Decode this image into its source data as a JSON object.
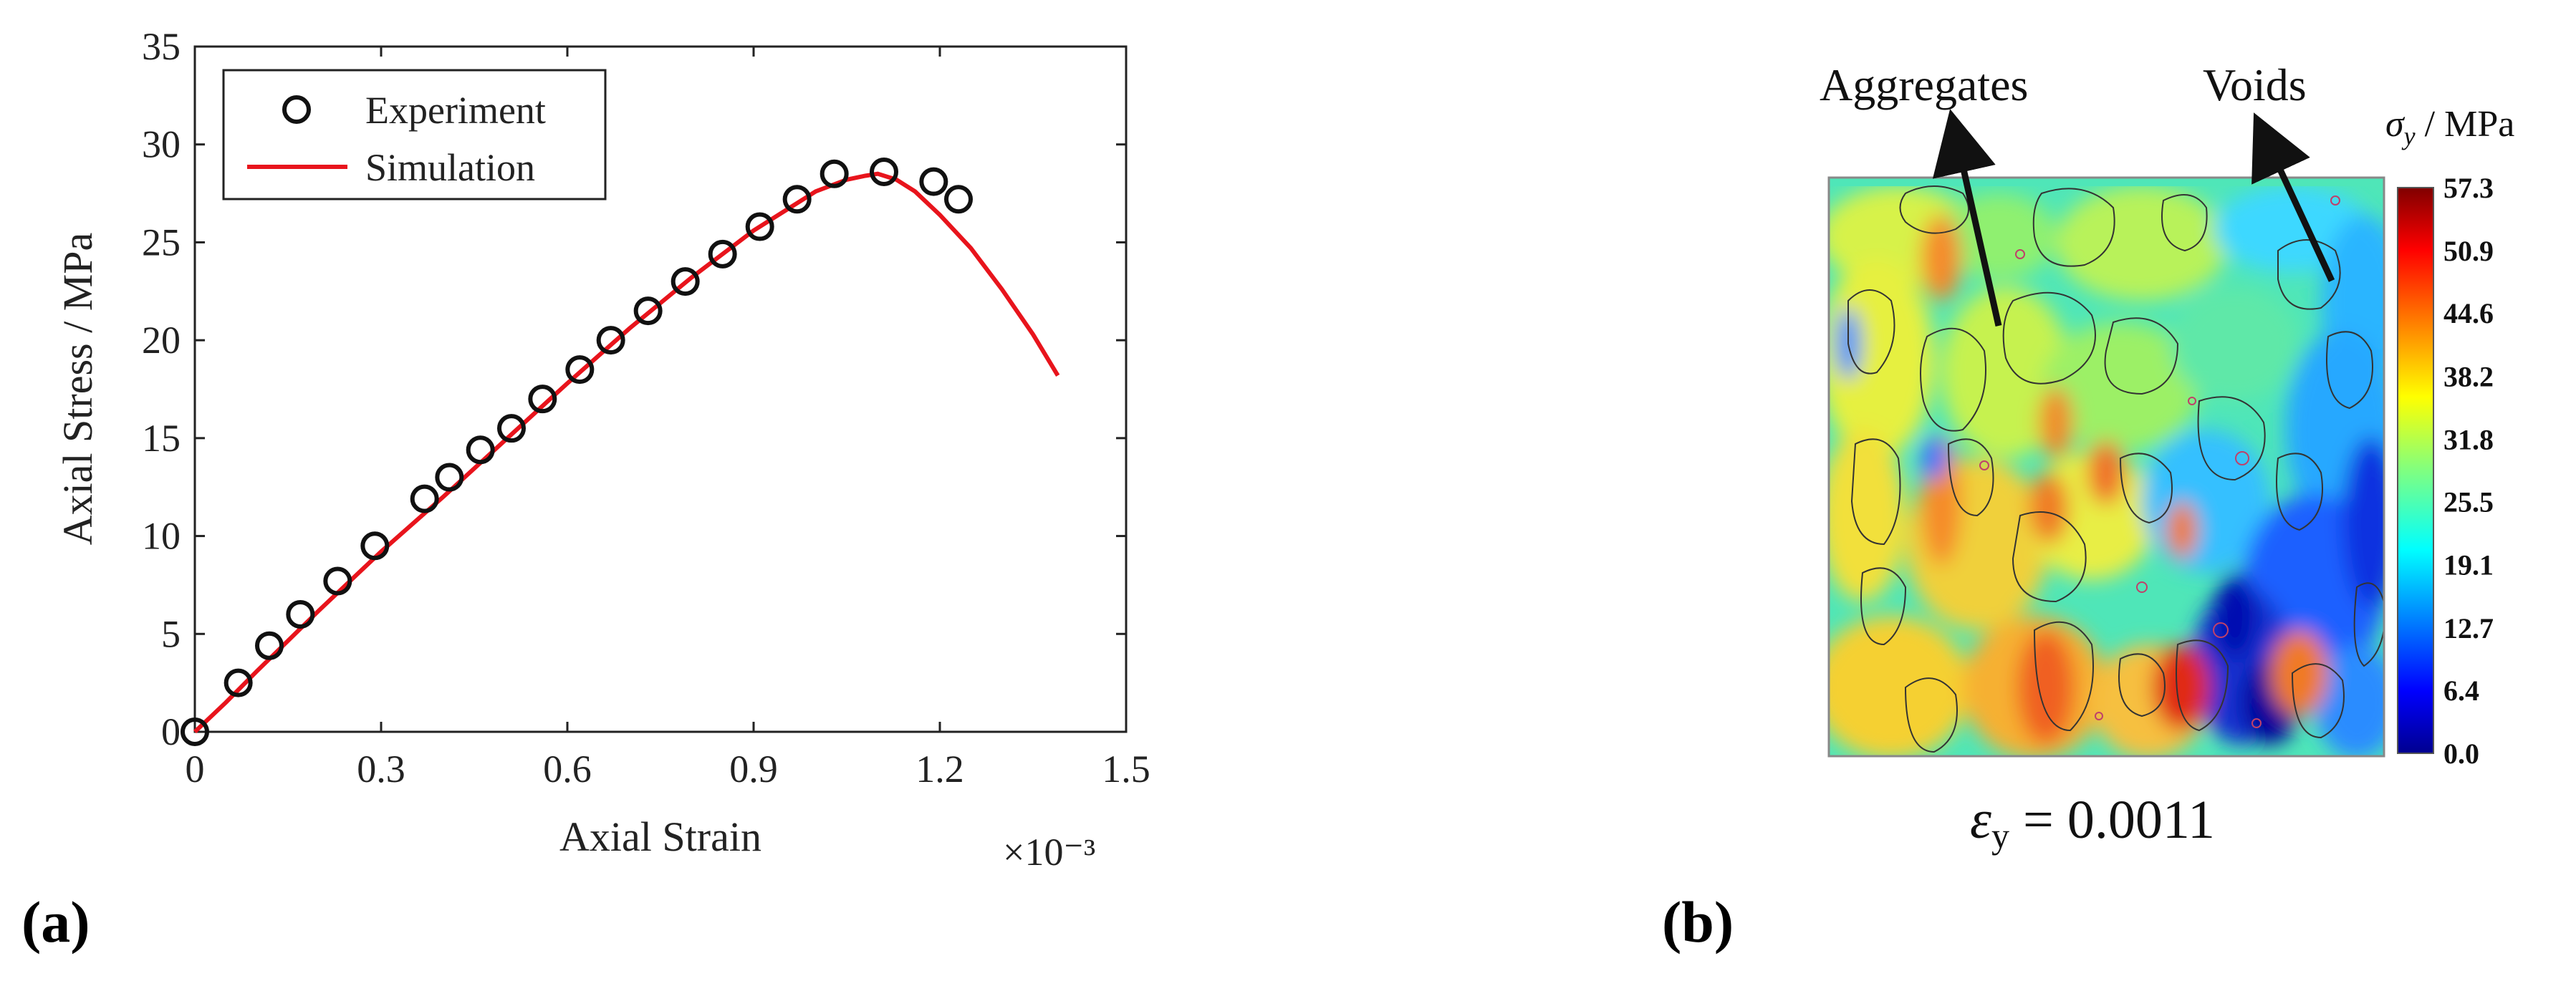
{
  "panels": {
    "a_label": "(a)",
    "b_label": "(b)"
  },
  "chart_data": [
    {
      "type": "scatter",
      "xlabel": "Axial Strain",
      "ylabel": "Axial Stress / MPa",
      "x_multiplier": "×10⁻³",
      "xlim": [
        0,
        1.5
      ],
      "ylim": [
        0,
        35
      ],
      "xticks": [
        "0",
        "0.3",
        "0.6",
        "0.9",
        "1.2",
        "1.5"
      ],
      "yticks": [
        "0",
        "5",
        "10",
        "15",
        "20",
        "25",
        "30",
        "35"
      ],
      "legend": {
        "position": "top-left",
        "entries": [
          "Experiment",
          "Simulation"
        ]
      },
      "series": [
        {
          "name": "Experiment",
          "style": "open-circle",
          "color": "#111111",
          "x": [
            0.0,
            0.07,
            0.12,
            0.17,
            0.23,
            0.29,
            0.37,
            0.41,
            0.46,
            0.51,
            0.56,
            0.62,
            0.67,
            0.73,
            0.79,
            0.85,
            0.91,
            0.97,
            1.03,
            1.11,
            1.19,
            1.23
          ],
          "y": [
            0.0,
            2.5,
            4.4,
            6.0,
            7.7,
            9.5,
            11.9,
            13.0,
            14.4,
            15.5,
            17.0,
            18.5,
            20.0,
            21.5,
            23.0,
            24.4,
            25.8,
            27.2,
            28.5,
            28.6,
            28.1,
            27.2
          ]
        },
        {
          "name": "Simulation",
          "style": "line",
          "color": "#e8141c",
          "x": [
            0.0,
            0.05,
            0.1,
            0.2,
            0.3,
            0.4,
            0.5,
            0.6,
            0.7,
            0.8,
            0.9,
            0.95,
            1.0,
            1.05,
            1.08,
            1.1,
            1.13,
            1.16,
            1.2,
            1.25,
            1.3,
            1.35,
            1.39
          ],
          "y": [
            0.0,
            1.5,
            3.1,
            6.2,
            9.2,
            12.0,
            14.9,
            17.8,
            20.6,
            23.2,
            25.6,
            26.6,
            27.6,
            28.2,
            28.4,
            28.5,
            28.2,
            27.6,
            26.4,
            24.7,
            22.6,
            20.3,
            18.2
          ]
        }
      ]
    },
    {
      "type": "heatmap",
      "title": "σy / MPa",
      "colorbar_ticks": [
        "57.3",
        "50.9",
        "44.6",
        "38.2",
        "31.8",
        "25.5",
        "19.1",
        "12.7",
        "6.4",
        "0.0"
      ],
      "colorbar_range": [
        0.0,
        57.3
      ],
      "colormap": [
        "#00008f",
        "#0000ff",
        "#0080ff",
        "#00ffff",
        "#80ff80",
        "#ffff00",
        "#ff8000",
        "#ff0000",
        "#800000"
      ],
      "annotations": [
        "Aggregates",
        "Voids"
      ],
      "caption": "εy = 0.0011"
    }
  ]
}
